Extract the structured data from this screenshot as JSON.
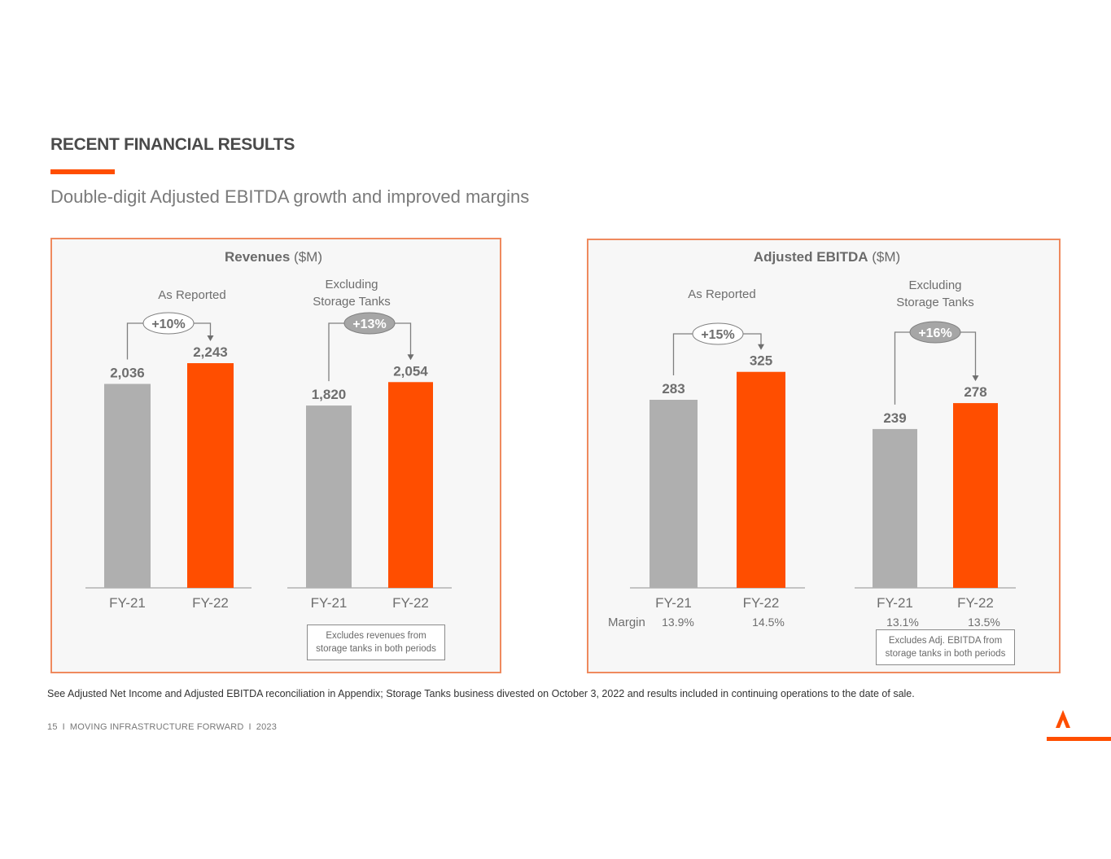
{
  "header": {
    "title": "RECENT FINANCIAL RESULTS",
    "subtitle": "Double-digit Adjusted EBITDA growth and improved margins"
  },
  "colors": {
    "accent": "#ff4e00",
    "gray_bar": "#afafaf",
    "text_gray": "#7a7a7a",
    "panel_border": "#ef8a5e"
  },
  "chart_data": [
    {
      "type": "bar",
      "title_bold": "Revenues",
      "title_unit": "($M)",
      "groups": [
        {
          "label_lines": [
            "As Reported"
          ],
          "categories": [
            "FY-21",
            "FY-22"
          ],
          "values": [
            2036,
            2243
          ],
          "value_labels": [
            "2,036",
            "2,243"
          ],
          "growth": "+10%",
          "growth_filled": false
        },
        {
          "label_lines": [
            "Excluding",
            "Storage Tanks"
          ],
          "categories": [
            "FY-21",
            "FY-22"
          ],
          "values": [
            1820,
            2054
          ],
          "value_labels": [
            "1,820",
            "2,054"
          ],
          "growth": "+13%",
          "growth_filled": true
        }
      ],
      "ylim": [
        0,
        2400
      ],
      "note_lines": [
        "Excludes revenues from",
        "storage tanks in both periods"
      ]
    },
    {
      "type": "bar",
      "title_bold": "Adjusted EBITDA",
      "title_unit": "($M)",
      "groups": [
        {
          "label_lines": [
            "As Reported"
          ],
          "categories": [
            "FY-21",
            "FY-22"
          ],
          "values": [
            283,
            325
          ],
          "value_labels": [
            "283",
            "325"
          ],
          "growth": "+15%",
          "growth_filled": false,
          "margins": [
            "13.9%",
            "14.5%"
          ]
        },
        {
          "label_lines": [
            "Excluding",
            "Storage Tanks"
          ],
          "categories": [
            "FY-21",
            "FY-22"
          ],
          "values": [
            239,
            278
          ],
          "value_labels": [
            "239",
            "278"
          ],
          "growth": "+16%",
          "growth_filled": true,
          "margins": [
            "13.1%",
            "13.5%"
          ]
        }
      ],
      "ylim": [
        0,
        400
      ],
      "margin_label": "Margin",
      "note_lines": [
        "Excludes Adj. EBITDA from",
        "storage tanks in both periods"
      ]
    }
  ],
  "footnote": "See Adjusted Net Income and Adjusted EBITDA reconciliation in Appendix; Storage Tanks business divested on October 3, 2022 and results included in continuing operations to the date of sale.",
  "footer": {
    "page": "15",
    "sep": "I",
    "tagline": "MOVING INFRASTRUCTURE FORWARD",
    "year": "2023"
  },
  "logo": {
    "letter": "A"
  }
}
